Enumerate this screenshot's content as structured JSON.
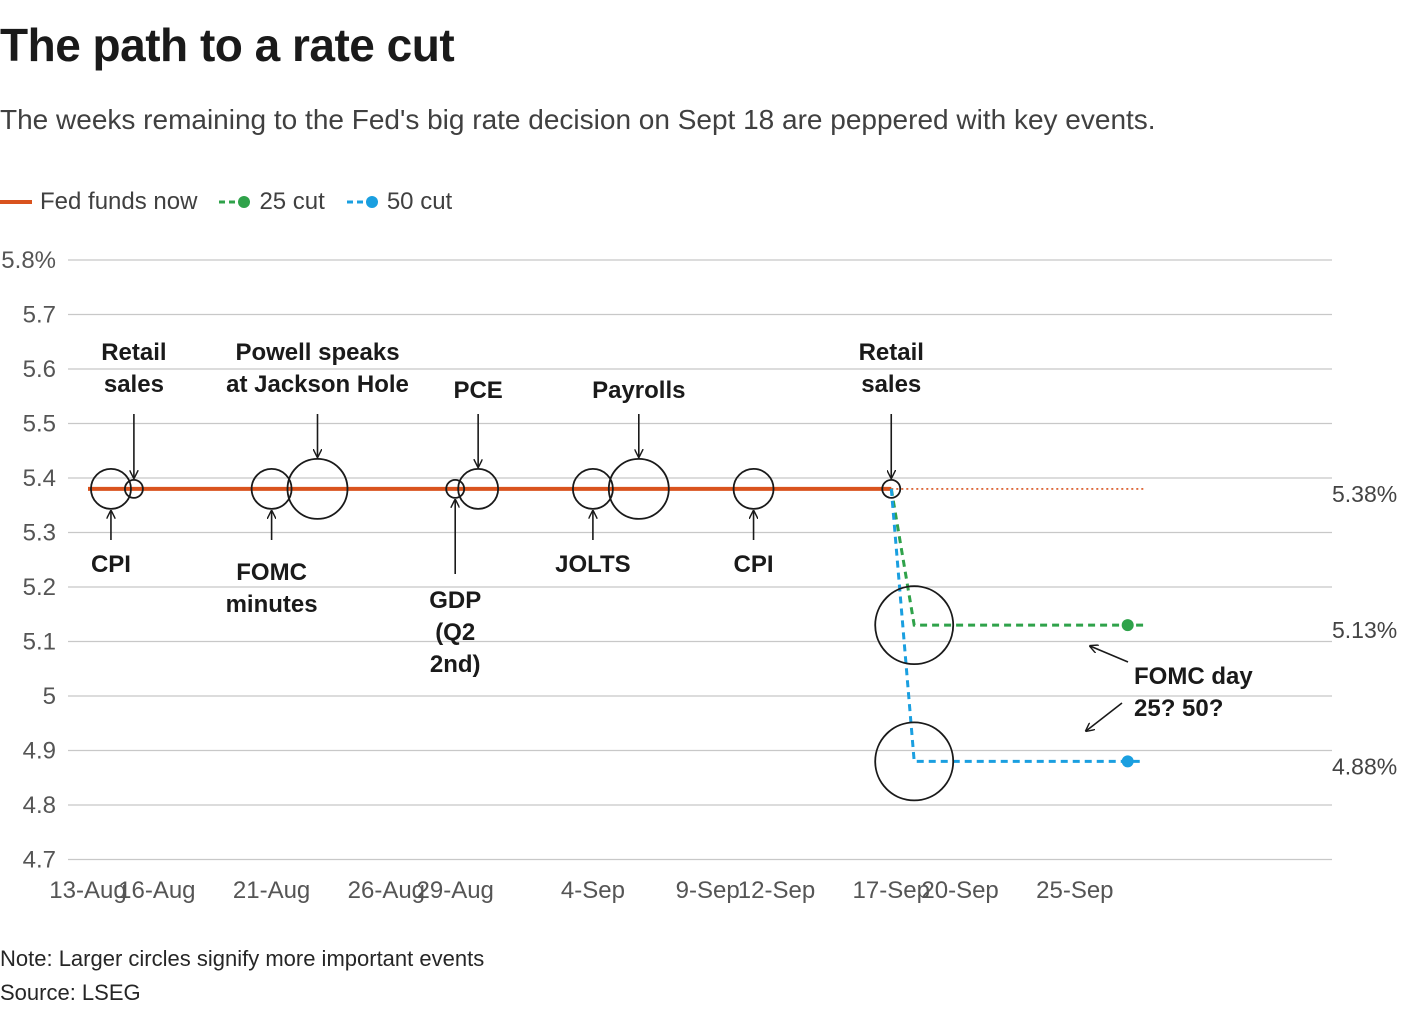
{
  "title": "The path to a rate cut",
  "subtitle": "The weeks remaining to the Fed's big rate decision on Sept 18 are peppered with key events.",
  "legend": [
    {
      "label": "Fed funds now",
      "color": "#d9531e",
      "style": "solid"
    },
    {
      "label": "25 cut",
      "color": "#2fa24a",
      "style": "dashed"
    },
    {
      "label": "50 cut",
      "color": "#1a9fe0",
      "style": "dashed"
    }
  ],
  "note": "Note: Larger circles signify more important events",
  "source": "Source: LSEG",
  "chart_data": {
    "type": "line",
    "ylim": [
      4.7,
      5.8
    ],
    "y_ticks": [
      {
        "value": 5.8,
        "label": "5.8%"
      },
      {
        "value": 5.7,
        "label": "5.7"
      },
      {
        "value": 5.6,
        "label": "5.6"
      },
      {
        "value": 5.5,
        "label": "5.5"
      },
      {
        "value": 5.4,
        "label": "5.4"
      },
      {
        "value": 5.3,
        "label": "5.3"
      },
      {
        "value": 5.2,
        "label": "5.2"
      },
      {
        "value": 5.1,
        "label": "5.1"
      },
      {
        "value": 5.0,
        "label": "5"
      },
      {
        "value": 4.9,
        "label": "4.9"
      },
      {
        "value": 4.8,
        "label": "4.8"
      },
      {
        "value": 4.7,
        "label": "4.7"
      }
    ],
    "x_start": "2024-08-13",
    "x_end": "2024-09-28",
    "x_ticks": [
      {
        "date": "2024-08-13",
        "label": "13-Aug"
      },
      {
        "date": "2024-08-16",
        "label": "16-Aug"
      },
      {
        "date": "2024-08-21",
        "label": "21-Aug"
      },
      {
        "date": "2024-08-26",
        "label": "26-Aug"
      },
      {
        "date": "2024-08-29",
        "label": "29-Aug"
      },
      {
        "date": "2024-09-04",
        "label": "4-Sep"
      },
      {
        "date": "2024-09-09",
        "label": "9-Sep"
      },
      {
        "date": "2024-09-12",
        "label": "12-Sep"
      },
      {
        "date": "2024-09-17",
        "label": "17-Sep"
      },
      {
        "date": "2024-09-20",
        "label": "20-Sep"
      },
      {
        "date": "2024-09-25",
        "label": "25-Sep"
      }
    ],
    "series": [
      {
        "name": "Fed funds now",
        "color": "#d9531e",
        "style": "solid",
        "points": [
          {
            "date": "2024-08-13",
            "value": 5.38
          },
          {
            "date": "2024-09-17",
            "value": 5.38
          }
        ]
      },
      {
        "name": "Fed funds now (extension)",
        "color": "#d9531e",
        "style": "dotted",
        "points": [
          {
            "date": "2024-09-17",
            "value": 5.38
          },
          {
            "date": "2024-09-28",
            "value": 5.38
          }
        ]
      },
      {
        "name": "25 cut",
        "color": "#2fa24a",
        "style": "dashed",
        "points": [
          {
            "date": "2024-09-17",
            "value": 5.38
          },
          {
            "date": "2024-09-18",
            "value": 5.13
          },
          {
            "date": "2024-09-28",
            "value": 5.13
          }
        ]
      },
      {
        "name": "50 cut",
        "color": "#1a9fe0",
        "style": "dashed",
        "points": [
          {
            "date": "2024-09-17",
            "value": 5.38
          },
          {
            "date": "2024-09-18",
            "value": 4.88
          },
          {
            "date": "2024-09-28",
            "value": 4.88
          }
        ]
      }
    ],
    "end_labels": [
      {
        "value": 5.38,
        "label": "5.38%"
      },
      {
        "value": 5.13,
        "label": "5.13%"
      },
      {
        "value": 4.88,
        "label": "4.88%"
      }
    ],
    "events": [
      {
        "id": "cpi-aug",
        "label": [
          "CPI"
        ],
        "date": "2024-08-14",
        "value": 5.38,
        "importance": 2,
        "label_pos": "below"
      },
      {
        "id": "retail-aug",
        "label": [
          "Retail",
          "sales"
        ],
        "date": "2024-08-15",
        "value": 5.38,
        "importance": 1,
        "label_pos": "above"
      },
      {
        "id": "fomc-minutes",
        "label": [
          "FOMC",
          "minutes"
        ],
        "date": "2024-08-21",
        "value": 5.38,
        "importance": 2,
        "label_pos": "below"
      },
      {
        "id": "jackson-hole",
        "label": [
          "Powell speaks",
          "at Jackson Hole"
        ],
        "date": "2024-08-23",
        "value": 5.38,
        "importance": 4,
        "label_pos": "above"
      },
      {
        "id": "gdp",
        "label": [
          "GDP",
          "(Q2",
          "2nd)"
        ],
        "date": "2024-08-29",
        "value": 5.38,
        "importance": 1,
        "label_pos": "below"
      },
      {
        "id": "pce",
        "label": [
          "PCE"
        ],
        "date": "2024-08-30",
        "value": 5.38,
        "importance": 2,
        "label_pos": "above"
      },
      {
        "id": "jolts",
        "label": [
          "JOLTS"
        ],
        "date": "2024-09-04",
        "value": 5.38,
        "importance": 2,
        "label_pos": "below"
      },
      {
        "id": "payrolls",
        "label": [
          "Payrolls"
        ],
        "date": "2024-09-06",
        "value": 5.38,
        "importance": 4,
        "label_pos": "above"
      },
      {
        "id": "cpi-sep",
        "label": [
          "CPI"
        ],
        "date": "2024-09-11",
        "value": 5.38,
        "importance": 2,
        "label_pos": "below"
      },
      {
        "id": "retail-sep",
        "label": [
          "Retail",
          "sales"
        ],
        "date": "2024-09-17",
        "value": 5.38,
        "importance": 1,
        "label_pos": "above"
      },
      {
        "id": "fomc-day-25",
        "label": [],
        "date": "2024-09-18",
        "value": 5.13,
        "importance": 5,
        "label_pos": "none"
      },
      {
        "id": "fomc-day-50",
        "label": [],
        "date": "2024-09-18",
        "value": 4.88,
        "importance": 5,
        "label_pos": "none"
      }
    ],
    "annotation": {
      "label": [
        "FOMC day",
        "25? 50?"
      ]
    }
  }
}
